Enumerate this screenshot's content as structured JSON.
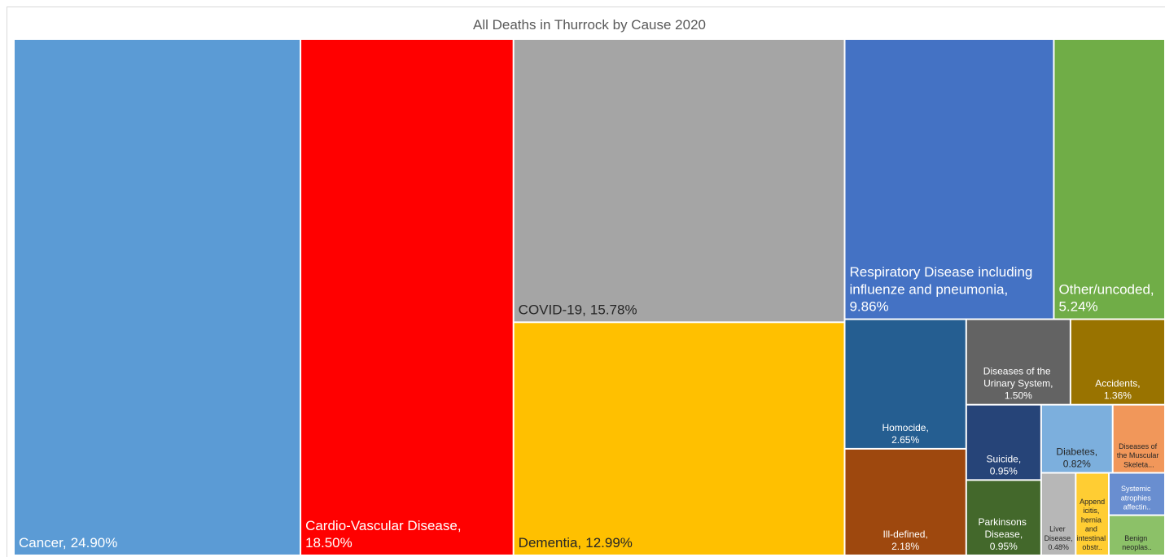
{
  "chart_data": {
    "type": "treemap",
    "title": "All Deaths in Thurrock by Cause 2020",
    "categories": [
      "Cancer,",
      "Cardio-Vascular Disease,",
      "COVID-19,",
      "Dementia,",
      "Respiratory Disease including influenze and pneumonia,",
      "Other/uncoded,",
      "Homocide,",
      "Ill-defined,",
      "Diseases of the Urinary System,",
      "Accidents,",
      "Suicide,",
      "Parkinsons Disease,",
      "Diabetes,",
      "Diseases of the Muscular Skeleta...",
      "Liver Disease,",
      "Appendicitis, hernia and intestinal obstr..",
      "Systemic atrophies affectin..",
      "Benign neoplas.."
    ],
    "values": [
      24.9,
      18.5,
      15.78,
      12.99,
      9.86,
      5.24,
      2.65,
      2.18,
      1.5,
      1.36,
      0.95,
      0.95,
      0.82,
      0.6,
      0.48,
      0.46,
      0.4,
      0.38
    ],
    "value_labels": [
      "24.90%",
      "18.50%",
      "15.78%",
      "12.99%",
      "9.86%",
      "5.24%",
      "2.65%",
      "2.18%",
      "1.50%",
      "1.36%",
      "0.95%",
      "0.95%",
      "0.82%",
      null,
      "0.48%",
      null,
      null,
      null
    ],
    "colors": [
      "#5b9bd5",
      "#ff0000",
      "#a5a5a5",
      "#ffc000",
      "#4472c4",
      "#70ad47",
      "#255e91",
      "#9e480e",
      "#636363",
      "#997300",
      "#264478",
      "#43682b",
      "#7cafdd",
      "#f1975a",
      "#b7b7b7",
      "#ffcd33",
      "#698ed0",
      "#8cc168"
    ]
  }
}
